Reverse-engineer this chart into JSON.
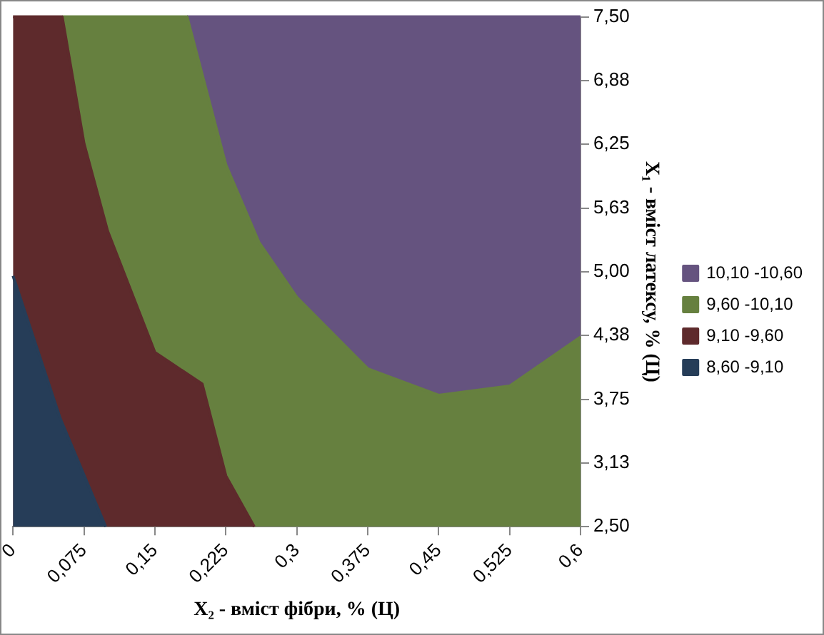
{
  "chart_data": {
    "type": "area",
    "xlabel": "X₂ - вміст фібри, % (Ц)",
    "ylabel": "X₁ - вміст латексу, % (Ц)",
    "xlim": [
      0,
      0.6
    ],
    "xticks": [
      {
        "value": 0,
        "label": "0"
      },
      {
        "value": 0.075,
        "label": "0,075"
      },
      {
        "value": 0.15,
        "label": "0,15"
      },
      {
        "value": 0.225,
        "label": "0,225"
      },
      {
        "value": 0.3,
        "label": "0,3"
      },
      {
        "value": 0.375,
        "label": "0,375"
      },
      {
        "value": 0.45,
        "label": "0,45"
      },
      {
        "value": 0.525,
        "label": "0,525"
      },
      {
        "value": 0.6,
        "label": "0,6"
      }
    ],
    "ylim": [
      2.5,
      7.5
    ],
    "yticks": [
      {
        "value": 2.5,
        "label": "2,50"
      },
      {
        "value": 3.125,
        "label": "3,13"
      },
      {
        "value": 3.75,
        "label": "3,75"
      },
      {
        "value": 4.375,
        "label": "4,38"
      },
      {
        "value": 5,
        "label": "5,00"
      },
      {
        "value": 5.625,
        "label": "5,63"
      },
      {
        "value": 6.25,
        "label": "6,25"
      },
      {
        "value": 6.875,
        "label": "6,88"
      },
      {
        "value": 7.5,
        "label": "7,50"
      }
    ],
    "grid": false,
    "legend": "right",
    "series": [
      {
        "name": "8,60 -9,10",
        "color": "#263d58",
        "x": [
          0,
          0.05,
          0.098
        ],
        "values": [
          4.96,
          3.56,
          2.5
        ]
      },
      {
        "name": "9,10 -9,60",
        "color": "#5e2a2c",
        "x": [
          0,
          0.052,
          0.075,
          0.1,
          0.15,
          0.2,
          0.225,
          0.255
        ],
        "values": [
          7.5,
          7.5,
          6.26,
          5.4,
          4.21,
          3.9,
          3.0,
          2.5
        ]
      },
      {
        "name": "9,60 -10,10",
        "color": "#66803f",
        "x": [
          0.052,
          0.184,
          0.225,
          0.26,
          0.3,
          0.375,
          0.45,
          0.525,
          0.6
        ],
        "values": [
          7.5,
          7.5,
          6.05,
          5.29,
          4.75,
          4.05,
          3.79,
          3.88,
          4.36
        ]
      },
      {
        "name": "10,10 -10,60",
        "color": "#65537f",
        "x": [
          0.184,
          0.6
        ],
        "values": [
          7.5,
          7.5
        ]
      }
    ]
  }
}
